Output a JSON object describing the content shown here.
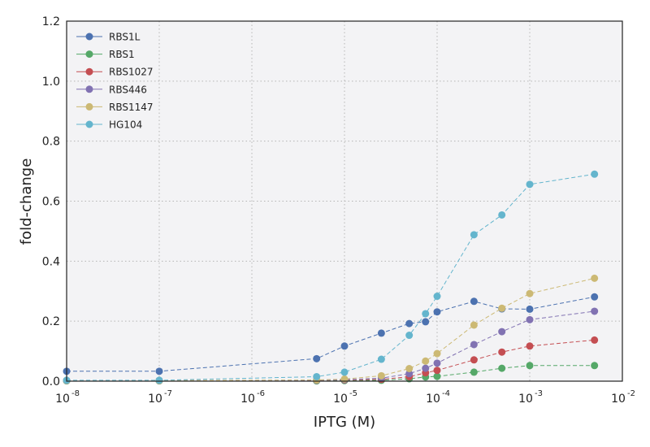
{
  "chart_data": {
    "type": "line",
    "title": "",
    "xlabel": "IPTG (M)",
    "ylabel": "fold-change",
    "xscale": "log",
    "xlim": [
      1e-08,
      0.01
    ],
    "ylim": [
      0,
      1.2
    ],
    "x_ticks": [
      {
        "base": "10",
        "exp": "-8"
      },
      {
        "base": "10",
        "exp": "-7"
      },
      {
        "base": "10",
        "exp": "-6"
      },
      {
        "base": "10",
        "exp": "-5"
      },
      {
        "base": "10",
        "exp": "-4"
      },
      {
        "base": "10",
        "exp": "-3"
      },
      {
        "base": "10",
        "exp": "-2"
      }
    ],
    "y_ticks": [
      "0.0",
      "0.2",
      "0.4",
      "0.6",
      "0.8",
      "1.0",
      "1.2"
    ],
    "grid": true,
    "legend_position": "top-left",
    "x": [
      0,
      1e-07,
      5e-06,
      1e-05,
      2.5e-05,
      5e-05,
      7.5e-05,
      0.0001,
      0.00025,
      0.0005,
      0.001,
      0.005
    ],
    "series": [
      {
        "name": "RBS1L",
        "color": "#4c72b0",
        "values": [
          0.033,
          0.033,
          0.075,
          0.117,
          0.16,
          0.192,
          0.198,
          0.231,
          0.266,
          0.241,
          0.24,
          0.281
        ]
      },
      {
        "name": "RBS1",
        "color": "#55a868",
        "values": [
          0.001,
          0.001,
          0.001,
          0.002,
          0.003,
          0.008,
          0.014,
          0.016,
          0.03,
          0.043,
          0.052,
          0.052
        ]
      },
      {
        "name": "RBS1027",
        "color": "#c44e52",
        "values": [
          0.002,
          0.002,
          0.003,
          0.004,
          0.006,
          0.015,
          0.028,
          0.036,
          0.071,
          0.097,
          0.117,
          0.137
        ]
      },
      {
        "name": "RBS446",
        "color": "#8172b2",
        "values": [
          0.002,
          0.002,
          0.003,
          0.005,
          0.01,
          0.025,
          0.043,
          0.06,
          0.122,
          0.165,
          0.205,
          0.233
        ]
      },
      {
        "name": "RBS1147",
        "color": "#ccb974",
        "values": [
          0.002,
          0.002,
          0.004,
          0.007,
          0.018,
          0.042,
          0.067,
          0.092,
          0.187,
          0.243,
          0.292,
          0.343
        ]
      },
      {
        "name": "HG104",
        "color": "#64b5cd",
        "values": [
          0.003,
          0.003,
          0.015,
          0.03,
          0.073,
          0.153,
          0.225,
          0.283,
          0.488,
          0.554,
          0.656,
          0.69
        ]
      }
    ]
  }
}
